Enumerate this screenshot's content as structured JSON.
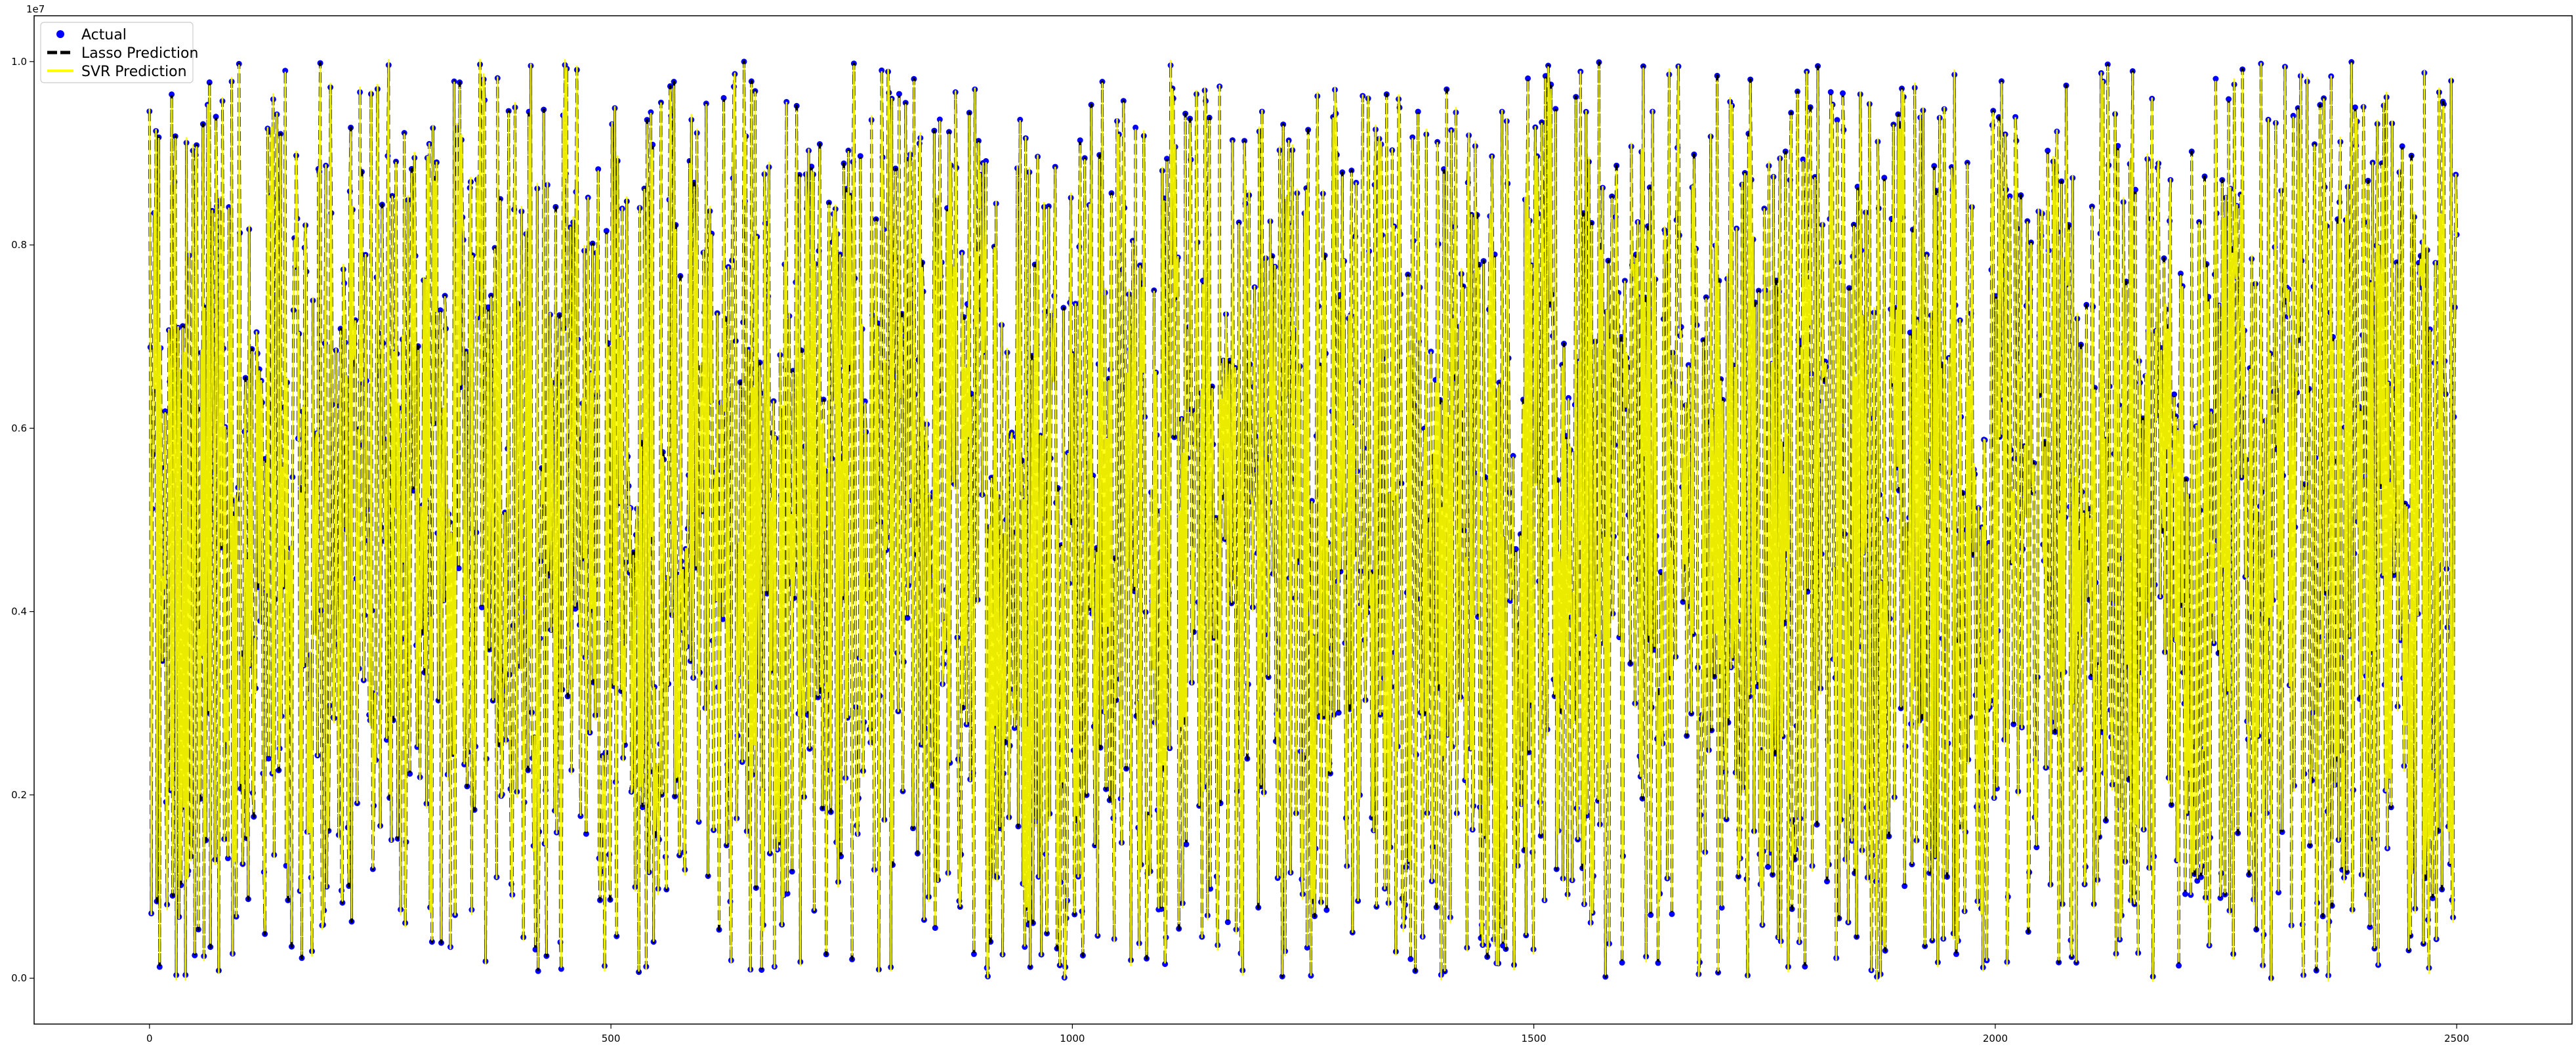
{
  "chart_data": {
    "type": "scatter",
    "title": "",
    "xlabel": "",
    "ylabel": "",
    "xlim": [
      -125,
      2625
    ],
    "ylim": [
      -500000,
      10500000
    ],
    "y_offset_label": "1e7",
    "x_ticks": [
      {
        "value": 0,
        "label": "0"
      },
      {
        "value": 500,
        "label": "500"
      },
      {
        "value": 1000,
        "label": "1000"
      },
      {
        "value": 1500,
        "label": "1500"
      },
      {
        "value": 2000,
        "label": "2000"
      },
      {
        "value": 2500,
        "label": "2500"
      }
    ],
    "y_ticks": [
      {
        "value": 0,
        "label": "0.0"
      },
      {
        "value": 2000000,
        "label": "0.2"
      },
      {
        "value": 4000000,
        "label": "0.4"
      },
      {
        "value": 6000000,
        "label": "0.6"
      },
      {
        "value": 8000000,
        "label": "0.8"
      },
      {
        "value": 10000000,
        "label": "1.0"
      }
    ],
    "n_points": 2500,
    "x_range": [
      0,
      2500
    ],
    "y_range": [
      0,
      10000000
    ],
    "legend_position": "top-left",
    "grid": false,
    "series": [
      {
        "name": "Actual",
        "kind": "scatter",
        "color": "#0000ff"
      },
      {
        "name": "Lasso Prediction",
        "kind": "dashed-line",
        "color": "#000000"
      },
      {
        "name": "SVR Prediction",
        "kind": "line",
        "color": "#ffff00"
      }
    ],
    "legend": [
      {
        "label": "Actual",
        "marker": "dot",
        "color": "#0000ff"
      },
      {
        "label": "Lasso Prediction",
        "marker": "dashed-line",
        "color": "#000000"
      },
      {
        "label": "SVR Prediction",
        "marker": "line",
        "color": "#ffff00"
      }
    ]
  }
}
